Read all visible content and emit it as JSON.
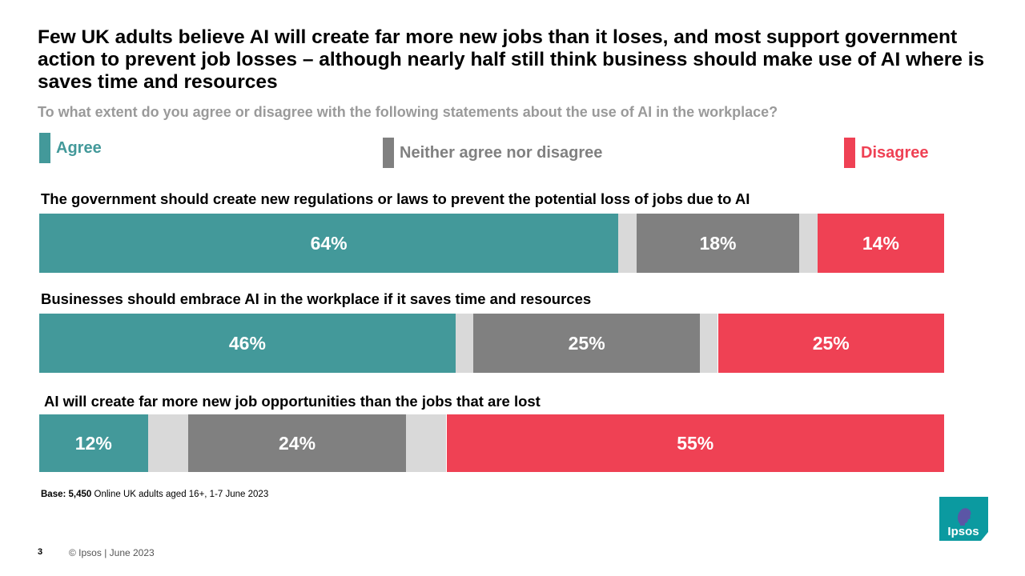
{
  "title": "Few UK adults believe AI will create far more new jobs than it loses, and most support government action to prevent job losses – although nearly half still think business should make use of AI where is saves time and resources",
  "subtitle": "To what extent do you agree or disagree with the following  statements about the use of AI in the workplace?",
  "legend": [
    {
      "label": "Agree",
      "color": "#43999a"
    },
    {
      "label": "Neither agree nor disagree",
      "color": "#808080"
    },
    {
      "label": "Disagree",
      "color": "#ef4154"
    }
  ],
  "gap_color": "#d9d9d9",
  "chart_data": {
    "type": "bar",
    "orientation": "horizontal-stacked",
    "series_names": [
      "Agree",
      "Neither agree nor disagree",
      "Disagree"
    ],
    "categories": [
      "The government should create new regulations or laws to prevent the potential loss of jobs due to AI",
      "Businesses should embrace AI in the workplace if it saves time and resources",
      "AI will  create far more new job opportunities than the jobs that are lost"
    ],
    "rows": [
      {
        "statement": "The government should create new regulations or laws to prevent the potential loss of jobs due to AI",
        "values": [
          64,
          18,
          14
        ],
        "labels": [
          "64%",
          "18%",
          "14%"
        ]
      },
      {
        "statement": "Businesses should embrace AI in the workplace if it saves time and resources",
        "values": [
          46,
          25,
          25
        ],
        "labels": [
          "46%",
          "25%",
          "25%"
        ]
      },
      {
        "statement": "AI will  create far more new job opportunities than the jobs that are lost",
        "values": [
          12,
          24,
          55
        ],
        "labels": [
          "12%",
          "24%",
          "55%"
        ]
      }
    ],
    "unit": "%"
  },
  "base": {
    "label": "Base:",
    "sample": "5,450",
    "text": "Online UK adults aged 16+, 1-7 June 2023"
  },
  "footer": {
    "page": "3",
    "copyright": "© Ipsos | June 2023"
  },
  "logo": {
    "text": "Ipsos",
    "color": "#0b9aa0",
    "text_color": "#ffffff",
    "figure_color": "#5b56a6"
  }
}
